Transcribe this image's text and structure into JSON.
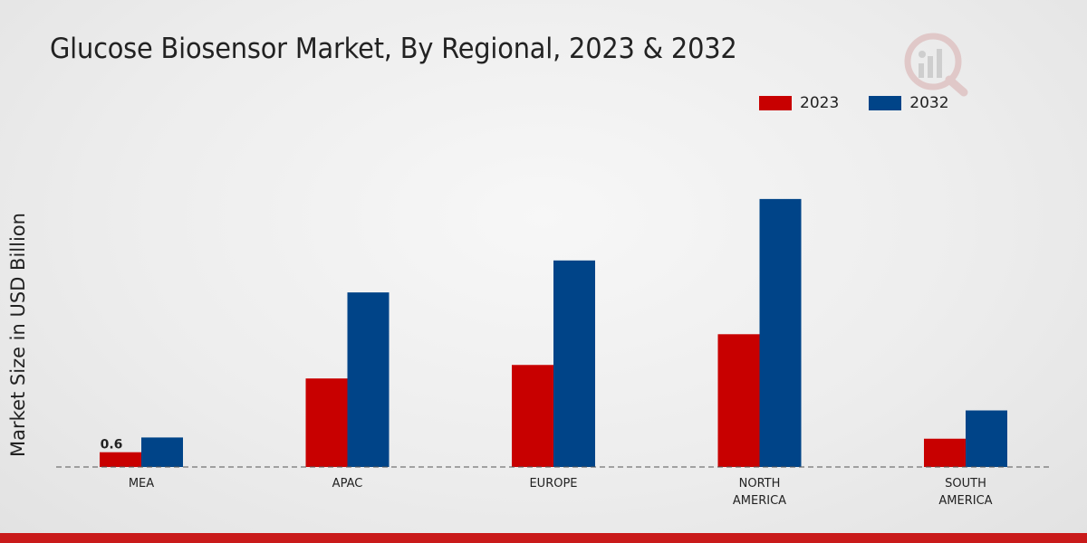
{
  "chart_data": {
    "type": "bar",
    "title": "Glucose Biosensor Market, By Regional, 2023 & 2032",
    "ylabel": "Market Size in USD Billion",
    "xlabel": "",
    "categories": [
      "MEA",
      "APAC",
      "EUROPE",
      "NORTH AMERICA",
      "SOUTH AMERICA"
    ],
    "category_lines": [
      [
        "MEA"
      ],
      [
        "APAC"
      ],
      [
        "EUROPE"
      ],
      [
        "NORTH",
        "AMERICA"
      ],
      [
        "SOUTH",
        "AMERICA"
      ]
    ],
    "series": [
      {
        "name": "2023",
        "color": "#c80000",
        "values": [
          0.6,
          3.6,
          4.15,
          5.4,
          1.15
        ]
      },
      {
        "name": "2032",
        "color": "#004488",
        "values": [
          1.2,
          7.1,
          8.4,
          10.9,
          2.3
        ]
      }
    ],
    "data_labels": [
      {
        "series": 0,
        "index": 0,
        "text": "0.6"
      }
    ],
    "ylim": [
      0,
      12
    ],
    "legend_position": "top-right",
    "grid": false
  },
  "legend": {
    "label_2023": "2023",
    "label_2032": "2032",
    "color_2023": "#c80000",
    "color_2032": "#004488"
  }
}
